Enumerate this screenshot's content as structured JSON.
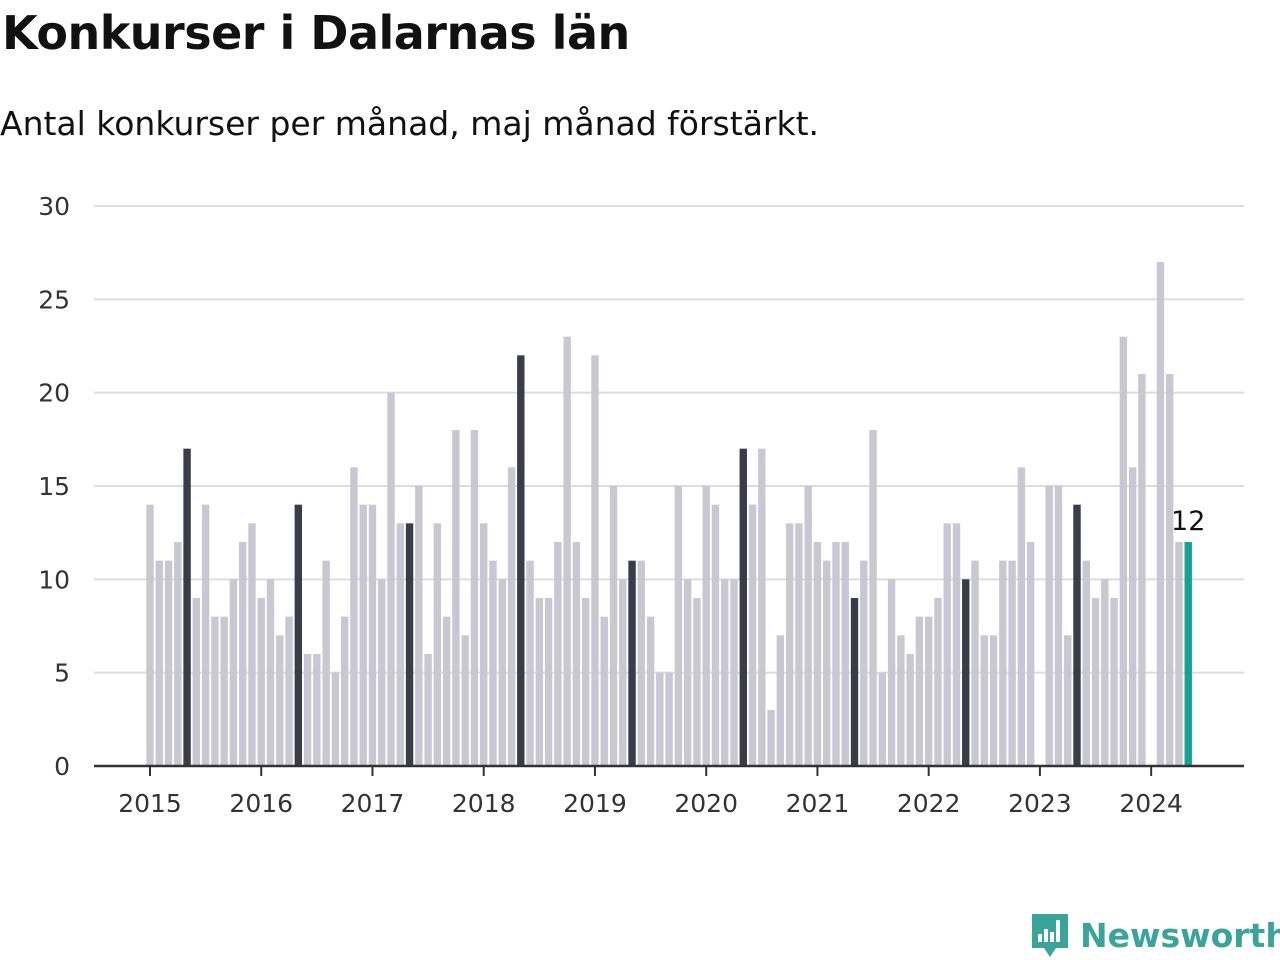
{
  "title": "Konkurser i Dalarnas län",
  "subtitle": "Antal konkurser per månad, maj månad förstärkt.",
  "brand": {
    "name": "Newsworthy",
    "color": "#3aa39a"
  },
  "colors": {
    "normal": "#c8c7d2",
    "may": "#3c3b4a",
    "current": "#16a394",
    "grid": "#dcdcdf",
    "axis": "#333333"
  },
  "chart_data": {
    "type": "bar",
    "title": "",
    "xlabel": "",
    "ylabel": "",
    "ylim": [
      0,
      30
    ],
    "yticks": [
      0,
      5,
      10,
      15,
      20,
      25,
      30
    ],
    "grid": true,
    "x_tick_labels": [
      "2015",
      "2016",
      "2017",
      "2018",
      "2019",
      "2020",
      "2021",
      "2022",
      "2023",
      "2024"
    ],
    "start": "2015-01",
    "highlight_month": "maj",
    "annotation": {
      "category": "2024-05",
      "text": "12"
    },
    "values": [
      14,
      11,
      11,
      12,
      17,
      9,
      14,
      8,
      8,
      10,
      12,
      13,
      9,
      10,
      7,
      8,
      14,
      6,
      6,
      11,
      5,
      8,
      16,
      14,
      14,
      10,
      20,
      13,
      13,
      15,
      6,
      13,
      8,
      18,
      7,
      18,
      13,
      11,
      10,
      16,
      22,
      11,
      9,
      9,
      12,
      23,
      12,
      9,
      22,
      8,
      15,
      10,
      11,
      11,
      8,
      5,
      5,
      15,
      10,
      9,
      15,
      14,
      10,
      10,
      17,
      14,
      17,
      3,
      7,
      13,
      13,
      15,
      12,
      11,
      12,
      12,
      9,
      11,
      18,
      5,
      10,
      7,
      6,
      8,
      8,
      9,
      13,
      13,
      10,
      11,
      7,
      7,
      11,
      11,
      16,
      12,
      0,
      15,
      15,
      7,
      14,
      11,
      9,
      10,
      9,
      23,
      16,
      21,
      0,
      27,
      21,
      12,
      12
    ]
  }
}
